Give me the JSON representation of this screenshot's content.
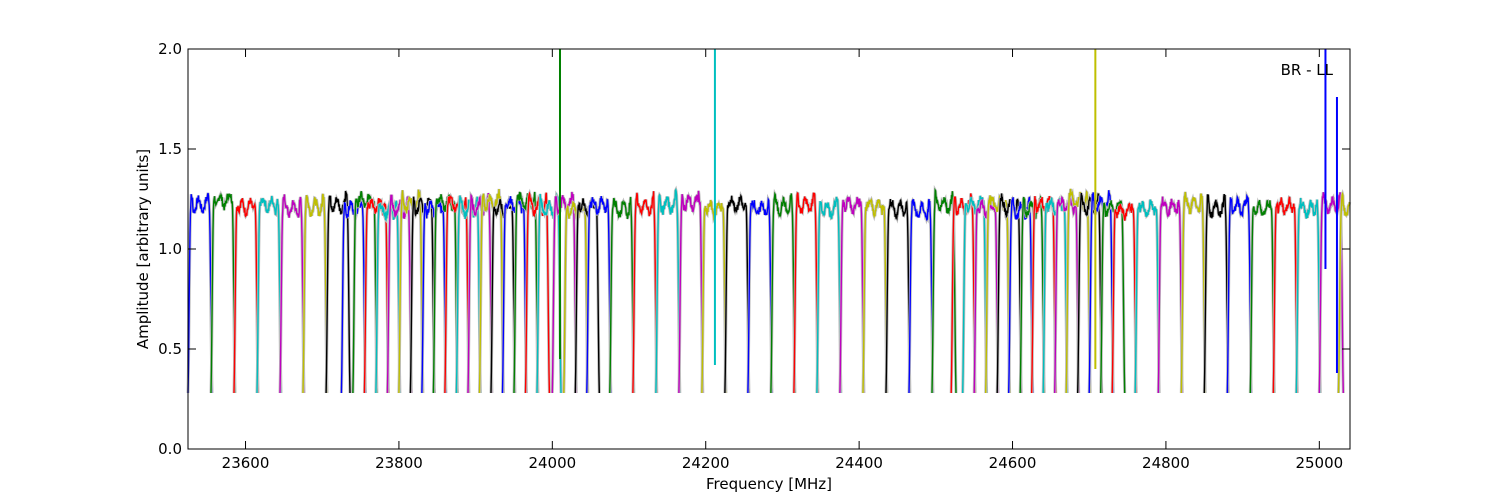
{
  "chart_data": {
    "type": "line",
    "title": "",
    "xlabel": "Frequency [MHz]",
    "ylabel": "Amplitude [arbitrary units]",
    "xlim": [
      23525,
      25040
    ],
    "ylim": [
      0.0,
      2.0
    ],
    "x_ticks": [
      23600,
      23800,
      24000,
      24200,
      24400,
      24600,
      24800,
      25000
    ],
    "y_ticks": [
      "0.0",
      "0.5",
      "1.0",
      "1.5",
      "2.0"
    ],
    "annotation": "BR - LL",
    "grid": false,
    "legend": "none",
    "color_cycle": [
      "#0000ff",
      "#008000",
      "#ff0000",
      "#00bfbf",
      "#bf00bf",
      "#bfbf00",
      "#000000"
    ],
    "shadow_color": "#bfbfbf",
    "band_width_mhz": 31.25,
    "band_starts_mhz": [
      23525,
      23555,
      23585,
      23615,
      23645,
      23675,
      23705,
      23725,
      23740,
      23755,
      23770,
      23785,
      23800,
      23815,
      23830,
      23845,
      23860,
      23875,
      23890,
      23905,
      23920,
      23935,
      23950,
      23965,
      23980,
      24000,
      24015,
      24030,
      24045,
      24075,
      24105,
      24135,
      24165,
      24195,
      24225,
      24255,
      24285,
      24315,
      24345,
      24375,
      24405,
      24435,
      24465,
      24495,
      24520,
      24535,
      24550,
      24565,
      24580,
      24595,
      24610,
      24625,
      24640,
      24655,
      24670,
      24685,
      24700,
      24715,
      24730,
      24760,
      24790,
      24820,
      24850,
      24880,
      24910,
      24940,
      24970,
      25000,
      25025
    ],
    "band_levels": [
      1.22,
      1.24,
      1.21,
      1.22,
      1.2,
      1.21,
      1.22,
      1.2,
      1.24,
      1.21,
      1.19,
      1.2,
      1.22,
      1.21,
      1.2,
      1.23,
      1.22,
      1.2,
      1.21,
      1.23,
      1.2,
      1.22,
      1.24,
      1.21,
      1.2,
      1.22,
      1.19,
      1.21,
      1.22,
      1.2,
      1.21,
      1.22,
      1.23,
      1.2,
      1.22,
      1.2,
      1.21,
      1.22,
      1.2,
      1.22,
      1.21,
      1.2,
      1.19,
      1.22,
      1.21,
      1.22,
      1.2,
      1.22,
      1.21,
      1.19,
      1.2,
      1.22,
      1.21,
      1.22,
      1.24,
      1.21,
      1.22,
      1.2,
      1.19,
      1.2,
      1.21,
      1.22,
      1.2,
      1.21,
      1.2,
      1.21,
      1.2,
      1.22,
      1.2
    ],
    "band_edge_minimum": 0.28,
    "spikes": [
      {
        "x": 24010,
        "top": 2.0,
        "bottom": 0.45,
        "color_index": 1
      },
      {
        "x": 24212,
        "top": 2.0,
        "bottom": 0.42,
        "color_index": 3
      },
      {
        "x": 24708,
        "top": 2.0,
        "bottom": 0.4,
        "color_index": 5
      },
      {
        "x": 25008,
        "top": 2.0,
        "bottom": 0.9,
        "color_index": 0
      },
      {
        "x": 25023,
        "top": 1.76,
        "bottom": 0.38,
        "color_index": 0
      }
    ]
  }
}
